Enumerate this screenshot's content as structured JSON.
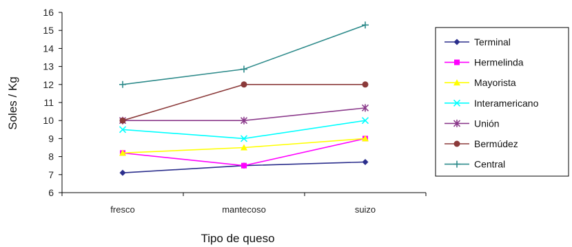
{
  "chart_data": {
    "type": "line",
    "xlabel": "Tipo de queso",
    "ylabel": "Soles / Kg",
    "categories": [
      "fresco",
      "mantecoso",
      "suizo"
    ],
    "ylim": [
      6,
      16
    ],
    "yticks": [
      6,
      7,
      8,
      9,
      10,
      11,
      12,
      13,
      14,
      15,
      16
    ],
    "grid": false,
    "legend_position": "right",
    "series": [
      {
        "name": "Terminal",
        "values": [
          7.1,
          7.5,
          7.7
        ],
        "color": "#2B2E8C",
        "marker": "diamond"
      },
      {
        "name": "Hermelinda",
        "values": [
          8.2,
          7.5,
          9.0
        ],
        "color": "#FF00FF",
        "marker": "square"
      },
      {
        "name": "Mayorista",
        "values": [
          8.2,
          8.5,
          9.0
        ],
        "color": "#FFFF00",
        "marker": "triangle"
      },
      {
        "name": "Interamericano",
        "values": [
          9.5,
          9.0,
          10.0
        ],
        "color": "#00FFFF",
        "marker": "x"
      },
      {
        "name": "Unión",
        "values": [
          10.0,
          10.0,
          10.7
        ],
        "color": "#8B3A8B",
        "marker": "star"
      },
      {
        "name": "Bermúdez",
        "values": [
          10.0,
          12.0,
          12.0
        ],
        "color": "#8B3A3A",
        "marker": "circle"
      },
      {
        "name": "Central",
        "values": [
          12.0,
          12.85,
          15.3
        ],
        "color": "#2E8B8B",
        "marker": "plus"
      }
    ]
  }
}
